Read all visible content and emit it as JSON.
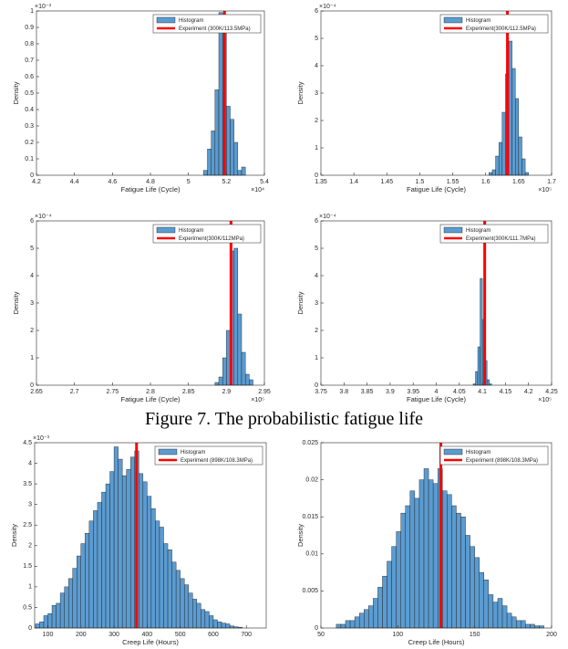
{
  "caption": "Figure 7. The probabilistic fatigue life",
  "chart_data": [
    {
      "type": "histogram",
      "xlabel": "Fatigue Life (Cycle)",
      "ylabel": "Density",
      "x_multiplier": "×10⁴",
      "y_multiplier": "×10⁻³",
      "xlim": [
        4.2,
        5.4
      ],
      "xticks": [
        4.2,
        4.4,
        4.6,
        4.8,
        5,
        5.2,
        5.4
      ],
      "ylim": [
        0,
        1
      ],
      "yticks": [
        0,
        0.1,
        0.2,
        0.3,
        0.4,
        0.5,
        0.6,
        0.7,
        0.8,
        0.9,
        1
      ],
      "bins": [
        5.08,
        5.1,
        5.12,
        5.14,
        5.16,
        5.18,
        5.2,
        5.22,
        5.24,
        5.26,
        5.28,
        5.3
      ],
      "series": [
        {
          "name": "Histogram",
          "color": "#5b9bd0",
          "values": [
            0.03,
            0.16,
            0.27,
            0.52,
            0.99,
            0.92,
            0.42,
            0.34,
            0.2,
            0.03,
            0.05
          ]
        }
      ],
      "experiment": {
        "name": "Experiment (300K/113.5MPa)",
        "color": "#ff0000",
        "x": 5.19
      }
    },
    {
      "type": "histogram",
      "xlabel": "Fatigue Life (Cycle)",
      "ylabel": "Density",
      "x_multiplier": "×10⁵",
      "y_multiplier": "×10⁻⁴",
      "xlim": [
        1.35,
        1.7
      ],
      "xticks": [
        1.35,
        1.4,
        1.45,
        1.5,
        1.55,
        1.6,
        1.65,
        1.7
      ],
      "ylim": [
        0,
        6
      ],
      "yticks": [
        0,
        1,
        2,
        3,
        4,
        5,
        6
      ],
      "bins": [
        1.605,
        1.61,
        1.615,
        1.62,
        1.625,
        1.63,
        1.635,
        1.64,
        1.645,
        1.65,
        1.655,
        1.66,
        1.665
      ],
      "series": [
        {
          "name": "Histogram",
          "color": "#5b9bd0",
          "values": [
            0.1,
            0.2,
            0.7,
            1.2,
            2.3,
            3.7,
            4.9,
            3.9,
            2.8,
            1.4,
            0.6,
            0.1
          ]
        }
      ],
      "experiment": {
        "name": "Experiment(300K/112.5MPa)",
        "color": "#ff0000",
        "x": 1.633
      }
    },
    {
      "type": "histogram",
      "xlabel": "Fatigue Life (Cycle)",
      "ylabel": "Density",
      "x_multiplier": "×10⁵",
      "y_multiplier": "×10⁻⁴",
      "xlim": [
        2.65,
        2.95
      ],
      "xticks": [
        2.65,
        2.7,
        2.75,
        2.8,
        2.85,
        2.9,
        2.95
      ],
      "ylim": [
        0,
        6
      ],
      "yticks": [
        0,
        1,
        2,
        3,
        4,
        5,
        6
      ],
      "bins": [
        2.885,
        2.89,
        2.895,
        2.9,
        2.905,
        2.91,
        2.915,
        2.92,
        2.925,
        2.93,
        2.935
      ],
      "series": [
        {
          "name": "Histogram",
          "color": "#5b9bd0",
          "values": [
            0.1,
            0.3,
            1.0,
            2.0,
            4.9,
            5.0,
            2.6,
            1.2,
            0.4,
            0.2
          ]
        }
      ],
      "experiment": {
        "name": "Experiment(300K/112MPa)",
        "color": "#ff0000",
        "x": 2.906
      }
    },
    {
      "type": "histogram",
      "xlabel": "Fatigue Life (Cycle)",
      "ylabel": "Density",
      "x_multiplier": "×10⁵",
      "y_multiplier": "×10⁻⁴",
      "xlim": [
        3.75,
        4.25
      ],
      "xticks": [
        3.75,
        3.8,
        3.85,
        3.9,
        3.95,
        4,
        4.05,
        4.1,
        4.15,
        4.2,
        4.25
      ],
      "ylim": [
        0,
        6
      ],
      "yticks": [
        0,
        1,
        2,
        3,
        4,
        5,
        6
      ],
      "bins": [
        4.08,
        4.085,
        4.09,
        4.095,
        4.1,
        4.105,
        4.11,
        4.115,
        4.12
      ],
      "series": [
        {
          "name": "Histogram",
          "color": "#5b9bd0",
          "values": [
            0.05,
            0.5,
            1.4,
            3.9,
            2.4,
            0.9,
            0.2,
            0.05
          ]
        }
      ],
      "experiment": {
        "name": "Experiment(300K/111.7MPa)",
        "color": "#ff0000",
        "x": 4.105
      }
    },
    {
      "type": "histogram",
      "xlabel": "Creep Life (Hours)",
      "ylabel": "Density",
      "y_multiplier": "×10⁻³",
      "xlim": [
        60,
        760
      ],
      "xticks": [
        100,
        200,
        300,
        400,
        500,
        600,
        700
      ],
      "ylim": [
        0,
        4.5
      ],
      "yticks": [
        0,
        0.5,
        1,
        1.5,
        2,
        2.5,
        3,
        3.5,
        4,
        4.5
      ],
      "bins": [
        62.5,
        75,
        87.5,
        100,
        112.5,
        125,
        137.5,
        150,
        162.5,
        175,
        187.5,
        200,
        212.5,
        225,
        237.5,
        250,
        262.5,
        275,
        287.5,
        300,
        312.5,
        325,
        337.5,
        350,
        362.5,
        375,
        387.5,
        400,
        412.5,
        425,
        437.5,
        450,
        462.5,
        475,
        487.5,
        500,
        512.5,
        525,
        537.5,
        550,
        562.5,
        575,
        587.5,
        600,
        612.5,
        625,
        637.5,
        650,
        662.5,
        675,
        687.5
      ],
      "series": [
        {
          "name": "Histogram",
          "color": "#5b9bd0",
          "values": [
            0.1,
            0.15,
            0.3,
            0.35,
            0.55,
            0.6,
            0.85,
            1.0,
            1.2,
            1.45,
            1.75,
            2.05,
            2.3,
            2.6,
            2.85,
            3.05,
            3.3,
            3.5,
            3.8,
            4.4,
            4.1,
            3.7,
            3.85,
            4.15,
            4.3,
            3.75,
            3.55,
            3.2,
            2.9,
            2.6,
            2.45,
            2.05,
            1.9,
            1.6,
            1.4,
            1.2,
            1.05,
            0.85,
            0.7,
            0.6,
            0.45,
            0.4,
            0.3,
            0.2,
            0.15,
            0.12,
            0.1,
            0.05,
            0.03,
            0.02
          ]
        }
      ],
      "experiment": {
        "name": "Experiment (898K/108.3MPa)",
        "color": "#ff0000",
        "x": 368
      }
    },
    {
      "type": "histogram",
      "xlabel": "Creep Life (Hours)",
      "ylabel": "Density",
      "xlim": [
        50,
        200
      ],
      "xticks": [
        50,
        100,
        150,
        200
      ],
      "ylim": [
        0,
        0.025
      ],
      "yticks": [
        0,
        0.005,
        0.01,
        0.015,
        0.02,
        0.025
      ],
      "bins": [
        60,
        63,
        66,
        69,
        72,
        75,
        78,
        81,
        84,
        87,
        90,
        93,
        96,
        99,
        102,
        105,
        108,
        111,
        114,
        117,
        120,
        123,
        126,
        129,
        132,
        135,
        138,
        141,
        144,
        147,
        150,
        153,
        156,
        159,
        162,
        165,
        168,
        171,
        174,
        177,
        180,
        183,
        186,
        189,
        192,
        195
      ],
      "series": [
        {
          "name": "Histogram",
          "color": "#5b9bd0",
          "values": [
            0.0005,
            0.0005,
            0.001,
            0.001,
            0.0015,
            0.002,
            0.0025,
            0.003,
            0.004,
            0.0055,
            0.007,
            0.009,
            0.011,
            0.013,
            0.0155,
            0.0165,
            0.0185,
            0.0175,
            0.02,
            0.0215,
            0.02,
            0.0195,
            0.0215,
            0.0185,
            0.018,
            0.0165,
            0.0155,
            0.015,
            0.0125,
            0.011,
            0.0095,
            0.0075,
            0.0065,
            0.0045,
            0.0035,
            0.004,
            0.003,
            0.002,
            0.0015,
            0.001,
            0.001,
            0.0005,
            0.0005,
            0.0003,
            0.0003
          ]
        }
      ],
      "experiment": {
        "name": "Experiment (898K/108.3MPa)",
        "color": "#ff0000",
        "x": 128
      }
    }
  ]
}
